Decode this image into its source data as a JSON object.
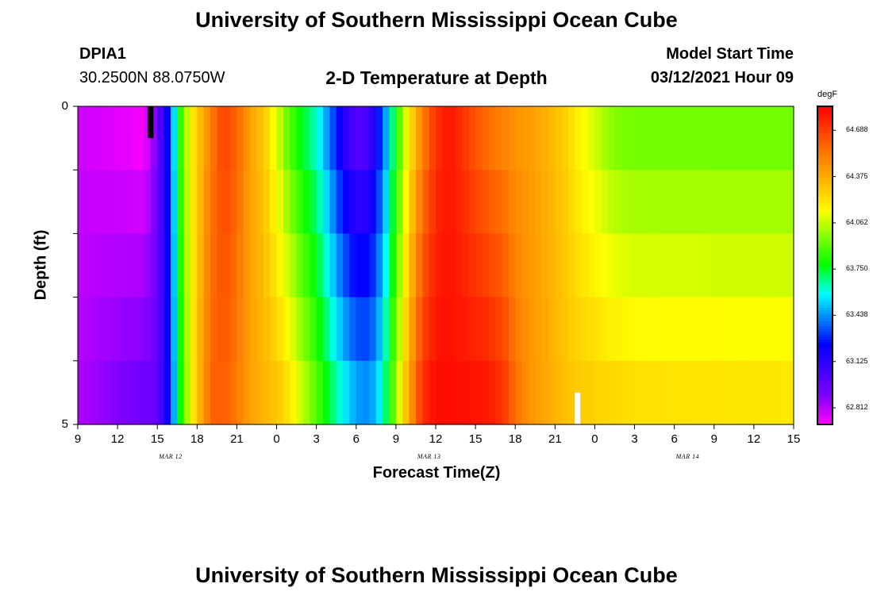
{
  "header": {
    "title_top": "University of Southern Mississippi Ocean Cube",
    "title_bottom": "University of Southern Mississippi Ocean Cube",
    "station_id": "DPIA1",
    "station_coords": "30.2500N 88.0750W",
    "plot_title": "2-D Temperature at Depth",
    "model_start_label": "Model Start Time",
    "model_start_value": "03/12/2021 Hour 09"
  },
  "chart_data": {
    "type": "heatmap",
    "title": "2-D Temperature at Depth",
    "xlabel": "Forecast Time(Z)",
    "ylabel": "Depth (ft)",
    "x_hours_range": [
      0,
      54
    ],
    "ylim": [
      0,
      5
    ],
    "x_tick_labels": [
      "9",
      "12",
      "15",
      "18",
      "21",
      "0",
      "3",
      "6",
      "9",
      "12",
      "15",
      "18",
      "21",
      "0",
      "3",
      "6",
      "9",
      "12",
      "15"
    ],
    "x_dates": [
      {
        "label": "MAR 12",
        "hour": 7
      },
      {
        "label": "MAR 13",
        "hour": 26.5
      },
      {
        "label": "MAR 14",
        "hour": 46
      }
    ],
    "y_tick_labels": [
      "0",
      "5"
    ],
    "colorbar": {
      "unit": "degF",
      "min": 62.7,
      "max": 64.85,
      "ticks": [
        "64.688",
        "64.375",
        "64.062",
        "63.750",
        "63.438",
        "63.125",
        "62.812"
      ],
      "tick_values": [
        64.688,
        64.375,
        64.062,
        63.75,
        63.438,
        63.125,
        62.812
      ]
    },
    "depth_levels": 5,
    "time_step_hours": 0.5,
    "profile_surface": [
      [
        0,
        62.78
      ],
      [
        4,
        62.73
      ],
      [
        5,
        62.71
      ],
      [
        6,
        62.92
      ],
      [
        7,
        63.35
      ],
      [
        7.5,
        63.72
      ],
      [
        8,
        63.98
      ],
      [
        9,
        64.28
      ],
      [
        10,
        64.5
      ],
      [
        11,
        64.68
      ],
      [
        12,
        64.58
      ],
      [
        13,
        64.4
      ],
      [
        14,
        64.3
      ],
      [
        15,
        64.1
      ],
      [
        16,
        63.9
      ],
      [
        17,
        63.75
      ],
      [
        18,
        63.62
      ],
      [
        19,
        63.4
      ],
      [
        20,
        63.15
      ],
      [
        21,
        63.0
      ],
      [
        22,
        63.05
      ],
      [
        23,
        63.35
      ],
      [
        24,
        63.8
      ],
      [
        25,
        64.2
      ],
      [
        26,
        64.5
      ],
      [
        27,
        64.72
      ],
      [
        28,
        64.8
      ],
      [
        29,
        64.72
      ],
      [
        30,
        64.62
      ],
      [
        31,
        64.55
      ],
      [
        32,
        64.5
      ],
      [
        33,
        64.45
      ],
      [
        34,
        64.42
      ],
      [
        35,
        64.38
      ],
      [
        36,
        64.32
      ],
      [
        37,
        64.25
      ],
      [
        38,
        64.15
      ],
      [
        39,
        64.08
      ],
      [
        40,
        64.0
      ],
      [
        41,
        63.96
      ],
      [
        42,
        63.95
      ],
      [
        54,
        63.95
      ]
    ],
    "profile_bottom": [
      [
        0,
        62.82
      ],
      [
        6,
        62.96
      ],
      [
        7,
        63.3
      ],
      [
        7.5,
        63.65
      ],
      [
        8,
        63.92
      ],
      [
        9,
        64.3
      ],
      [
        10,
        64.58
      ],
      [
        11,
        64.6
      ],
      [
        12,
        64.52
      ],
      [
        13,
        64.4
      ],
      [
        15,
        64.3
      ],
      [
        16,
        64.2
      ],
      [
        17,
        64.05
      ],
      [
        18,
        63.9
      ],
      [
        19,
        63.72
      ],
      [
        20,
        63.58
      ],
      [
        21,
        63.45
      ],
      [
        22,
        63.42
      ],
      [
        23,
        63.6
      ],
      [
        24,
        64.0
      ],
      [
        25,
        64.4
      ],
      [
        26,
        64.72
      ],
      [
        27,
        64.82
      ],
      [
        30,
        64.8
      ],
      [
        31,
        64.78
      ],
      [
        32,
        64.72
      ],
      [
        33,
        64.55
      ],
      [
        34,
        64.45
      ],
      [
        35,
        64.4
      ],
      [
        36,
        64.35
      ],
      [
        37,
        64.3
      ],
      [
        38,
        64.28
      ],
      [
        42,
        64.22
      ],
      [
        54,
        64.2
      ]
    ],
    "annotations": [
      {
        "type": "bar",
        "color": "#000000",
        "hour": 5.5,
        "depth_range": [
          0,
          0.5
        ]
      },
      {
        "type": "bar",
        "color": "#ffffff",
        "hour": 37.7,
        "depth_range": [
          4.5,
          5
        ]
      }
    ]
  }
}
